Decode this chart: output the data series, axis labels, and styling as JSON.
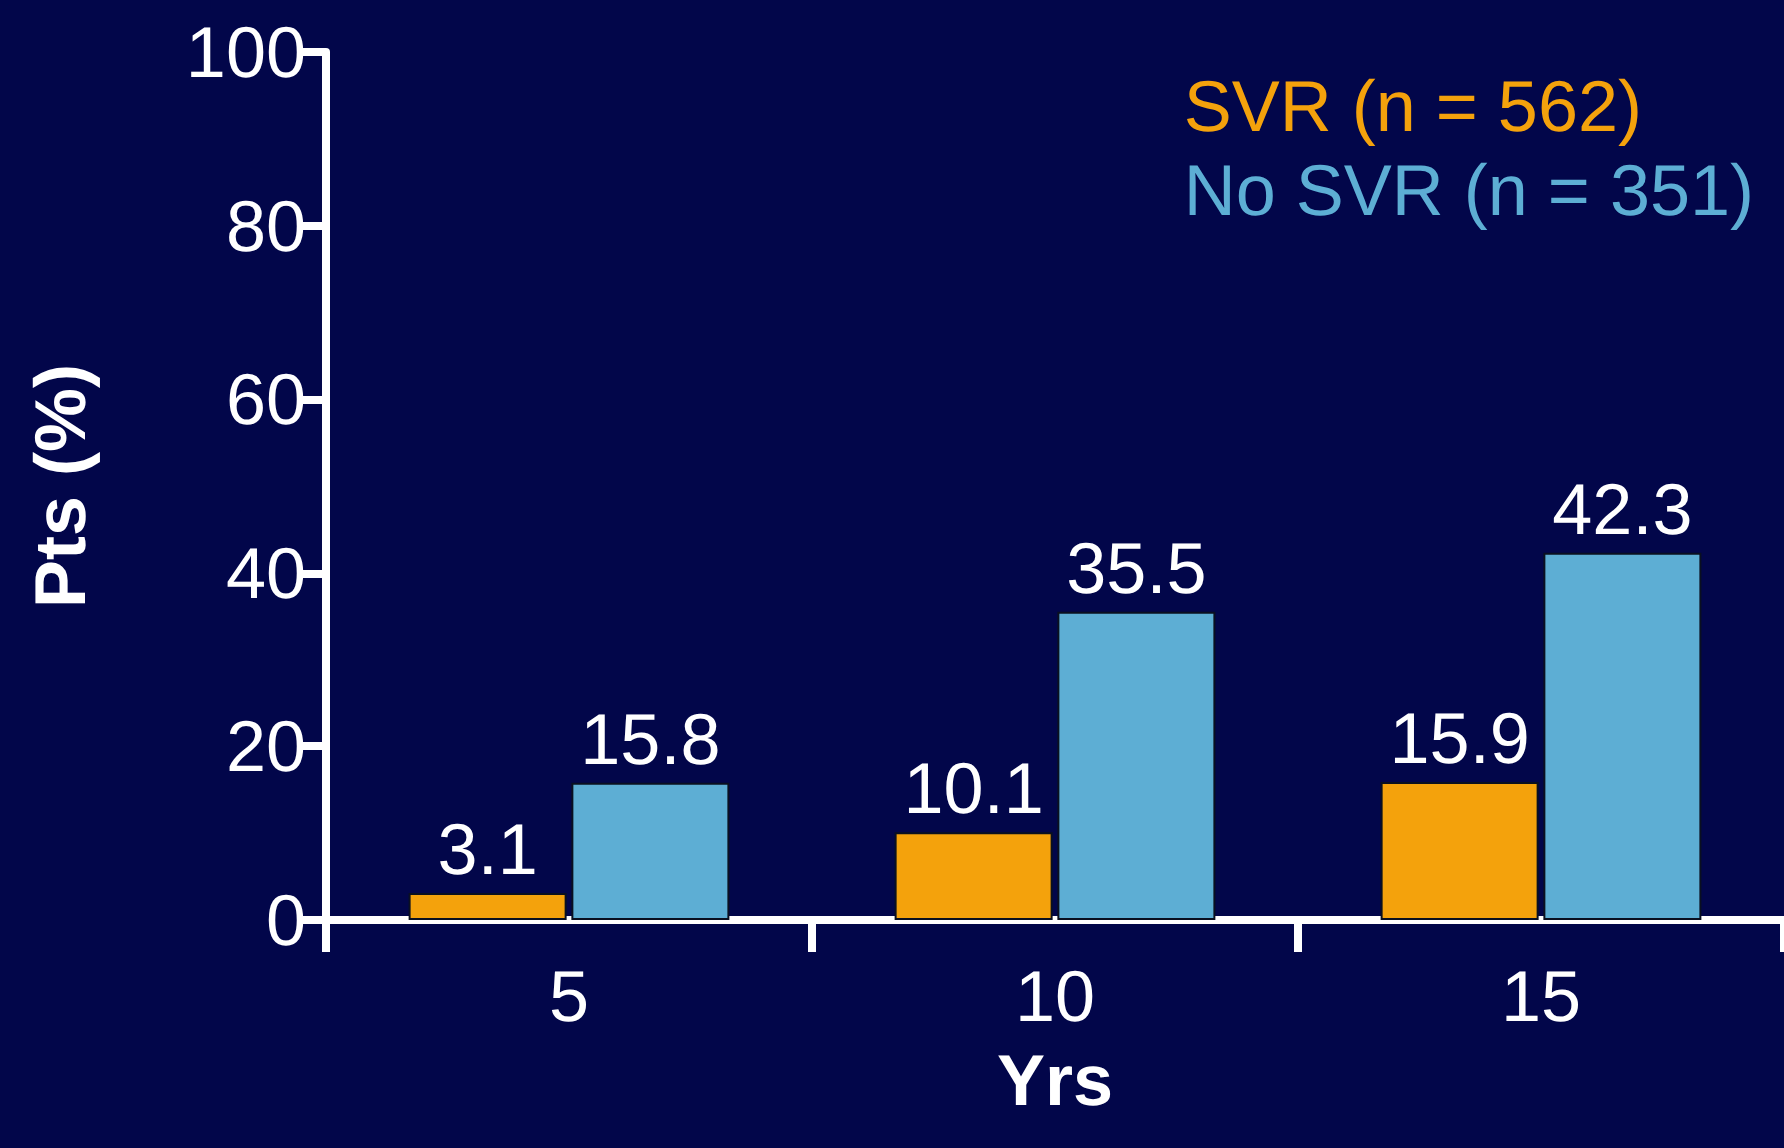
{
  "chart_data": {
    "type": "bar",
    "xlabel": "Yrs",
    "ylabel": "Pts (%)",
    "categories": [
      "5",
      "10",
      "15"
    ],
    "series": [
      {
        "name": "SVR (n = 562)",
        "color": "#f4a20c",
        "values": [
          3.1,
          10.1,
          15.9
        ]
      },
      {
        "name": "No SVR (n = 351)",
        "color": "#5daed4",
        "values": [
          15.8,
          35.5,
          42.3
        ]
      }
    ],
    "ylim": [
      0,
      100
    ],
    "yticks": [
      0,
      20,
      40,
      60,
      80,
      100
    ],
    "data_labels": true,
    "legend": "top right",
    "grid": false
  }
}
